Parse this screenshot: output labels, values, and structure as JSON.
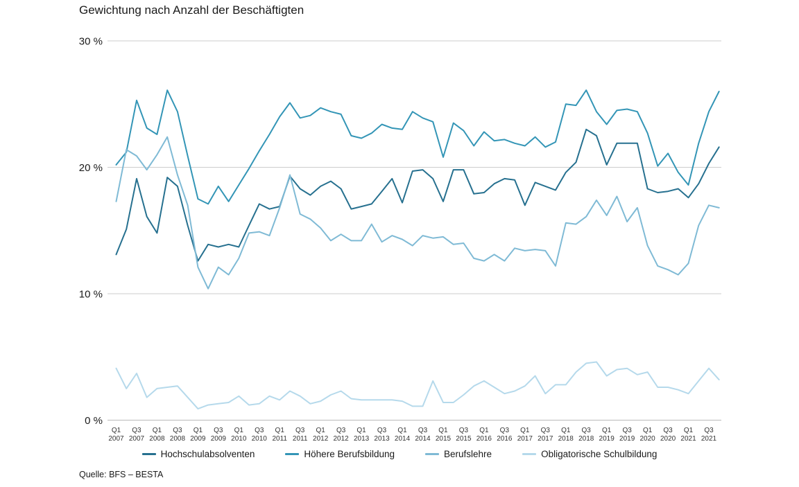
{
  "title": "Gewichtung nach Anzahl der Beschäftigten",
  "source": "Quelle: BFS – BESTA",
  "colors": {
    "grid": "#cccccc",
    "zero_grid": "#b9b9b9",
    "text": "#1a1a1a",
    "tick_text": "#333333"
  },
  "chart_data": {
    "type": "line",
    "title": "Gewichtung nach Anzahl der Beschäftigten",
    "xlabel": "",
    "ylabel": "",
    "ylim": [
      0,
      30
    ],
    "grid": "horizontal",
    "legend_position": "bottom",
    "unit": "%",
    "x_tick_every": 2,
    "x_labels": [
      "Q1 2007",
      "Q2 2007",
      "Q3 2007",
      "Q4 2007",
      "Q1 2008",
      "Q2 2008",
      "Q3 2008",
      "Q4 2008",
      "Q1 2009",
      "Q2 2009",
      "Q3 2009",
      "Q4 2009",
      "Q1 2010",
      "Q2 2010",
      "Q3 2010",
      "Q4 2010",
      "Q1 2011",
      "Q2 2011",
      "Q3 2011",
      "Q4 2011",
      "Q1 2012",
      "Q2 2012",
      "Q3 2012",
      "Q4 2012",
      "Q1 2013",
      "Q2 2013",
      "Q3 2013",
      "Q4 2013",
      "Q1 2014",
      "Q2 2014",
      "Q3 2014",
      "Q4 2014",
      "Q1 2015",
      "Q2 2015",
      "Q3 2015",
      "Q4 2015",
      "Q1 2016",
      "Q2 2016",
      "Q3 2016",
      "Q4 2016",
      "Q1 2017",
      "Q2 2017",
      "Q3 2017",
      "Q4 2017",
      "Q1 2018",
      "Q2 2018",
      "Q3 2018",
      "Q4 2018",
      "Q1 2019",
      "Q2 2019",
      "Q3 2019",
      "Q4 2019",
      "Q1 2020",
      "Q2 2020",
      "Q3 2020",
      "Q4 2020",
      "Q1 2021",
      "Q2 2021",
      "Q3 2021",
      "Q4 2021"
    ],
    "yticks": [
      {
        "value": 30,
        "label": "30 %"
      },
      {
        "value": 20,
        "label": "20 %"
      },
      {
        "value": 10,
        "label": "10 %"
      },
      {
        "value": 0,
        "label": "0 %"
      }
    ],
    "series": [
      {
        "name": "Hochschulabsolventen",
        "color": "#26708f",
        "values": [
          13.1,
          15.1,
          19.1,
          16.1,
          14.8,
          19.2,
          18.5,
          15.4,
          12.6,
          13.9,
          13.7,
          13.9,
          13.7,
          15.4,
          17.1,
          16.7,
          16.9,
          19.3,
          18.3,
          17.8,
          18.5,
          18.9,
          18.3,
          16.7,
          16.9,
          17.1,
          18.1,
          19.1,
          17.2,
          19.7,
          19.8,
          19.1,
          17.3,
          19.8,
          19.8,
          17.9,
          18.0,
          18.7,
          19.1,
          19.0,
          17.0,
          18.8,
          18.5,
          18.2,
          19.6,
          20.4,
          23.0,
          22.5,
          20.2,
          21.9,
          21.9,
          21.9,
          18.3,
          18.0,
          18.1,
          18.3,
          17.6,
          18.7,
          20.3,
          21.6
        ]
      },
      {
        "name": "Höhere Berufsbildung",
        "color": "#3395b6",
        "values": [
          20.2,
          21.2,
          25.3,
          23.1,
          22.6,
          26.1,
          24.4,
          20.9,
          17.5,
          17.1,
          18.5,
          17.3,
          18.6,
          19.9,
          21.3,
          22.6,
          24.0,
          25.1,
          23.9,
          24.1,
          24.7,
          24.4,
          24.2,
          22.5,
          22.3,
          22.7,
          23.4,
          23.1,
          23.0,
          24.4,
          23.9,
          23.6,
          20.8,
          23.5,
          22.9,
          21.7,
          22.8,
          22.1,
          22.2,
          21.9,
          21.7,
          22.4,
          21.6,
          22.0,
          25.0,
          24.9,
          26.1,
          24.4,
          23.4,
          24.5,
          24.6,
          24.4,
          22.7,
          20.1,
          21.1,
          19.6,
          18.6,
          21.9,
          24.4,
          26.0
        ]
      },
      {
        "name": "Berufslehre",
        "color": "#7fbad5",
        "values": [
          17.3,
          21.4,
          20.9,
          19.8,
          21.0,
          22.4,
          19.4,
          17.0,
          12.1,
          10.4,
          12.1,
          11.5,
          12.8,
          14.8,
          14.9,
          14.6,
          16.8,
          19.4,
          16.3,
          15.9,
          15.2,
          14.2,
          14.7,
          14.2,
          14.2,
          15.5,
          14.1,
          14.6,
          14.3,
          13.8,
          14.6,
          14.4,
          14.5,
          13.9,
          14.0,
          12.8,
          12.6,
          13.1,
          12.6,
          13.6,
          13.4,
          13.5,
          13.4,
          12.2,
          15.6,
          15.5,
          16.1,
          17.4,
          16.2,
          17.7,
          15.7,
          16.8,
          13.8,
          12.2,
          11.9,
          11.5,
          12.4,
          15.4,
          17.0,
          16.8
        ]
      },
      {
        "name": "Obligatorische Schulbildung",
        "color": "#b5d9eb",
        "values": [
          4.1,
          2.5,
          3.7,
          1.8,
          2.5,
          2.6,
          2.7,
          1.8,
          0.9,
          1.2,
          1.3,
          1.4,
          1.9,
          1.2,
          1.3,
          1.9,
          1.6,
          2.3,
          1.9,
          1.3,
          1.5,
          2.0,
          2.3,
          1.7,
          1.6,
          1.6,
          1.6,
          1.6,
          1.5,
          1.1,
          1.1,
          3.1,
          1.4,
          1.4,
          2.0,
          2.7,
          3.1,
          2.6,
          2.1,
          2.3,
          2.7,
          3.5,
          2.1,
          2.8,
          2.8,
          3.8,
          4.5,
          4.6,
          3.5,
          4.0,
          4.1,
          3.6,
          3.8,
          2.6,
          2.6,
          2.4,
          2.1,
          3.1,
          4.1,
          3.2
        ]
      }
    ],
    "source": "Quelle: BFS – BESTA"
  }
}
